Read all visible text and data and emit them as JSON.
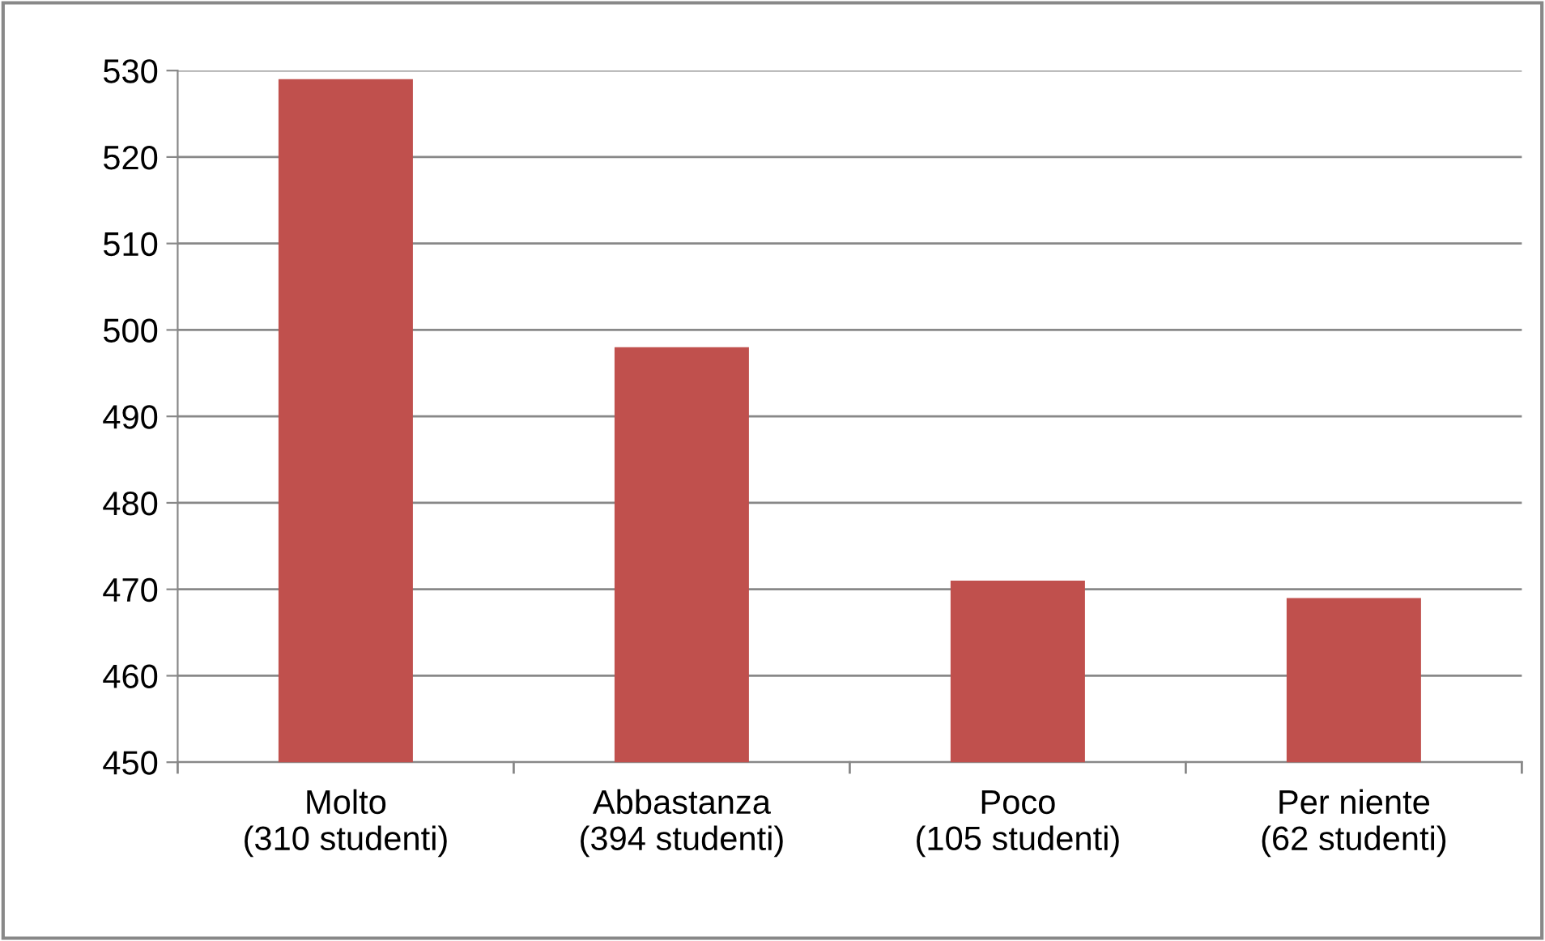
{
  "chart_data": {
    "type": "bar",
    "categories": [
      "Molto\n(310 studenti)",
      "Abbastanza\n(394 studenti)",
      "Poco\n(105 studenti)",
      "Per niente\n(62 studenti)"
    ],
    "values": [
      529,
      498,
      471,
      469
    ],
    "color": "#c0504d",
    "ylim": [
      450,
      530
    ],
    "yticks": [
      450,
      460,
      470,
      480,
      490,
      500,
      510,
      520,
      530
    ],
    "grid": "y",
    "legend": false
  }
}
